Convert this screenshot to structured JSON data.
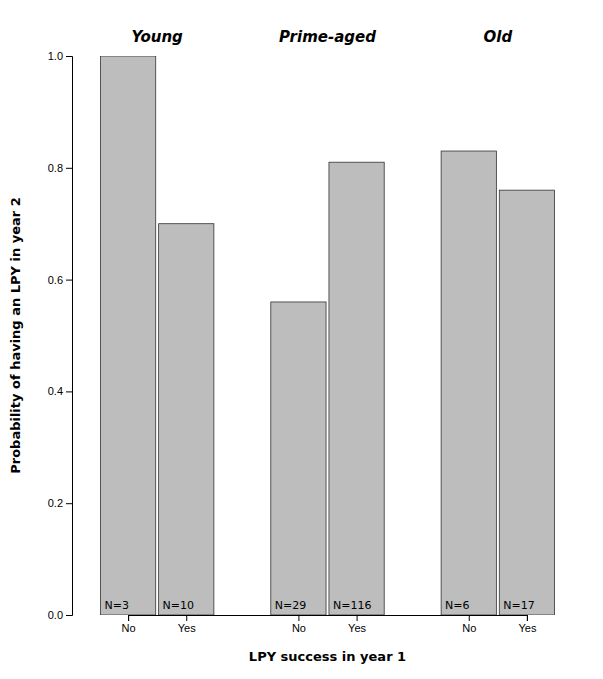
{
  "chart_data": {
    "type": "bar",
    "group_labels": [
      "Young",
      "Prime-aged",
      "Old"
    ],
    "categories": [
      "No",
      "Yes",
      "No",
      "Yes",
      "No",
      "Yes"
    ],
    "values": [
      1.0,
      0.7,
      0.56,
      0.81,
      0.83,
      0.76
    ],
    "n_labels": [
      "N=3",
      "N=10",
      "N=29",
      "N=116",
      "N=6",
      "N=17"
    ],
    "color": "#bdbdbd",
    "xlabel": "LPY success in year 1",
    "ylabel": "Probability of having an LPY in year 2",
    "ylim": [
      0.0,
      1.0
    ],
    "yticks": [
      {
        "value": 0.0,
        "label": "0.0"
      },
      0.2,
      0.4,
      0.6,
      0.8,
      {
        "value": 1.0,
        "label": "1.0"
      }
    ]
  }
}
